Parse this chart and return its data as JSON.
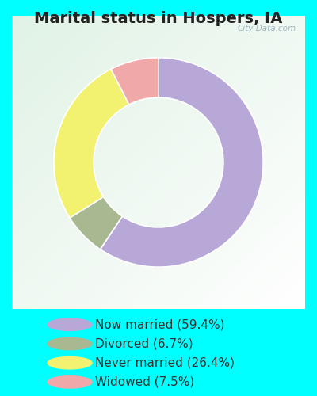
{
  "title": "Marital status in Hospers, IA",
  "slices": [
    59.4,
    6.7,
    26.4,
    7.5
  ],
  "labels": [
    "Now married (59.4%)",
    "Divorced (6.7%)",
    "Never married (26.4%)",
    "Widowed (7.5%)"
  ],
  "colors": [
    "#b8a8d8",
    "#a8b890",
    "#f2f270",
    "#f0a8a8"
  ],
  "outer_bg": "#00ffff",
  "chart_bg_color": "#e8f5ee",
  "title_fontsize": 14,
  "legend_fontsize": 11,
  "watermark": "City-Data.com",
  "start_angle": 90,
  "donut_width": 0.38
}
